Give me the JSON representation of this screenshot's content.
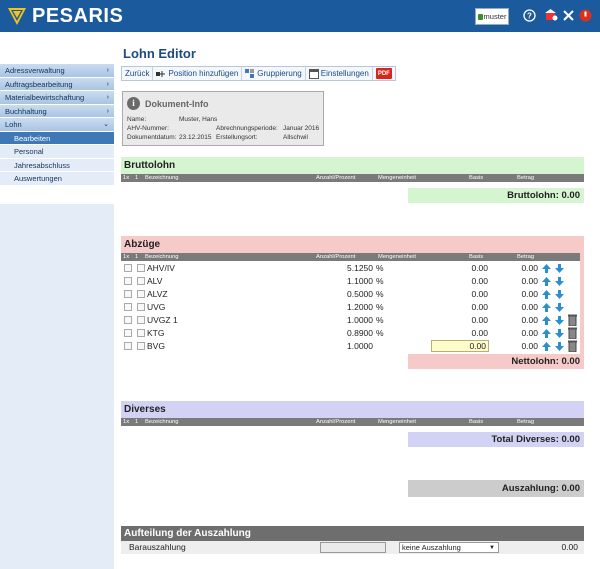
{
  "header": {
    "brand": "PESARIS",
    "user": "muster",
    "icons": [
      "help-icon",
      "settings-icon",
      "tools-icon",
      "power-icon"
    ]
  },
  "sidebar": {
    "items": [
      {
        "label": "Adressverwaltung",
        "arrow": "›"
      },
      {
        "label": "Auftragsbearbeitung",
        "arrow": "›"
      },
      {
        "label": "Materialbewirtschaftung",
        "arrow": "›"
      },
      {
        "label": "Buchhaltung",
        "arrow": "›"
      },
      {
        "label": "Lohn",
        "arrow": "⌄"
      }
    ],
    "subitems": [
      {
        "label": "Bearbeiten",
        "active": true
      },
      {
        "label": "Personal",
        "active": false
      },
      {
        "label": "Jahresabschluss",
        "active": false
      },
      {
        "label": "Auswertungen",
        "active": false
      }
    ]
  },
  "page": {
    "title": "Lohn Editor"
  },
  "toolbar": {
    "back": "Zurück",
    "add_position": "Position hinzufügen",
    "grouping": "Gruppierung",
    "settings": "Einstellungen",
    "pdf": "PDF"
  },
  "docinfo": {
    "title": "Dokument-Info",
    "name_label": "Name:",
    "name_value": "Muster, Hans",
    "ahv_label": "AHV-Nummer:",
    "ahv_value": "",
    "period_label": "Abrechnungsperiode:",
    "period_value": "Januar 2016",
    "date_label": "Dokumentdatum:",
    "date_value": "23.12.2015",
    "place_label": "Erstellungsort:",
    "place_value": "Allschwil"
  },
  "columns": {
    "x1": "1x",
    "x2": "1",
    "bezeichnung": "Bezeichnung",
    "anzahl": "Anzahl/Prozent",
    "mengeneinheit": "Mengeneinheit",
    "basis": "Basis",
    "betrag": "Betrag"
  },
  "bruttolohn": {
    "title": "Bruttolohn",
    "total": "Bruttolohn: 0.00"
  },
  "abzuege": {
    "title": "Abzüge",
    "rows": [
      {
        "label": "AHV/IV",
        "pct": "5.1250",
        "unit": "%",
        "basis": "0.00",
        "betrag": "0.00",
        "trash": false,
        "input": false
      },
      {
        "label": "ALV",
        "pct": "1.1000",
        "unit": "%",
        "basis": "0.00",
        "betrag": "0.00",
        "trash": false,
        "input": false
      },
      {
        "label": "ALVZ",
        "pct": "0.5000",
        "unit": "%",
        "basis": "0.00",
        "betrag": "0.00",
        "trash": false,
        "input": false
      },
      {
        "label": "UVG",
        "pct": "1.2000",
        "unit": "%",
        "basis": "0.00",
        "betrag": "0.00",
        "trash": false,
        "input": false
      },
      {
        "label": "UVGZ 1",
        "pct": "1.0000",
        "unit": "%",
        "basis": "0.00",
        "betrag": "0.00",
        "trash": true,
        "input": false
      },
      {
        "label": "KTG",
        "pct": "0.8900",
        "unit": "%",
        "basis": "0.00",
        "betrag": "0.00",
        "trash": true,
        "input": false
      },
      {
        "label": "BVG",
        "pct": "1.0000",
        "unit": "",
        "basis": "0.00",
        "betrag": "0.00",
        "trash": true,
        "input": true
      }
    ],
    "total": "Nettolohn: 0.00"
  },
  "diverses": {
    "title": "Diverses",
    "total": "Total Diverses: 0.00"
  },
  "auszahlung": {
    "total": "Auszahlung: 0.00"
  },
  "aufteilung": {
    "title": "Aufteilung der Auszahlung",
    "row_label": "Barauszahlung",
    "select_value": "keine Auszahlung",
    "amount": "0.00"
  },
  "colors": {
    "header_bg": "#1c5a9e",
    "brutto_bg": "#d5f5d0",
    "abzuege_bg": "#f7caca",
    "diverses_bg": "#d2d2f5",
    "auszahlung_bg": "#cccccc"
  }
}
